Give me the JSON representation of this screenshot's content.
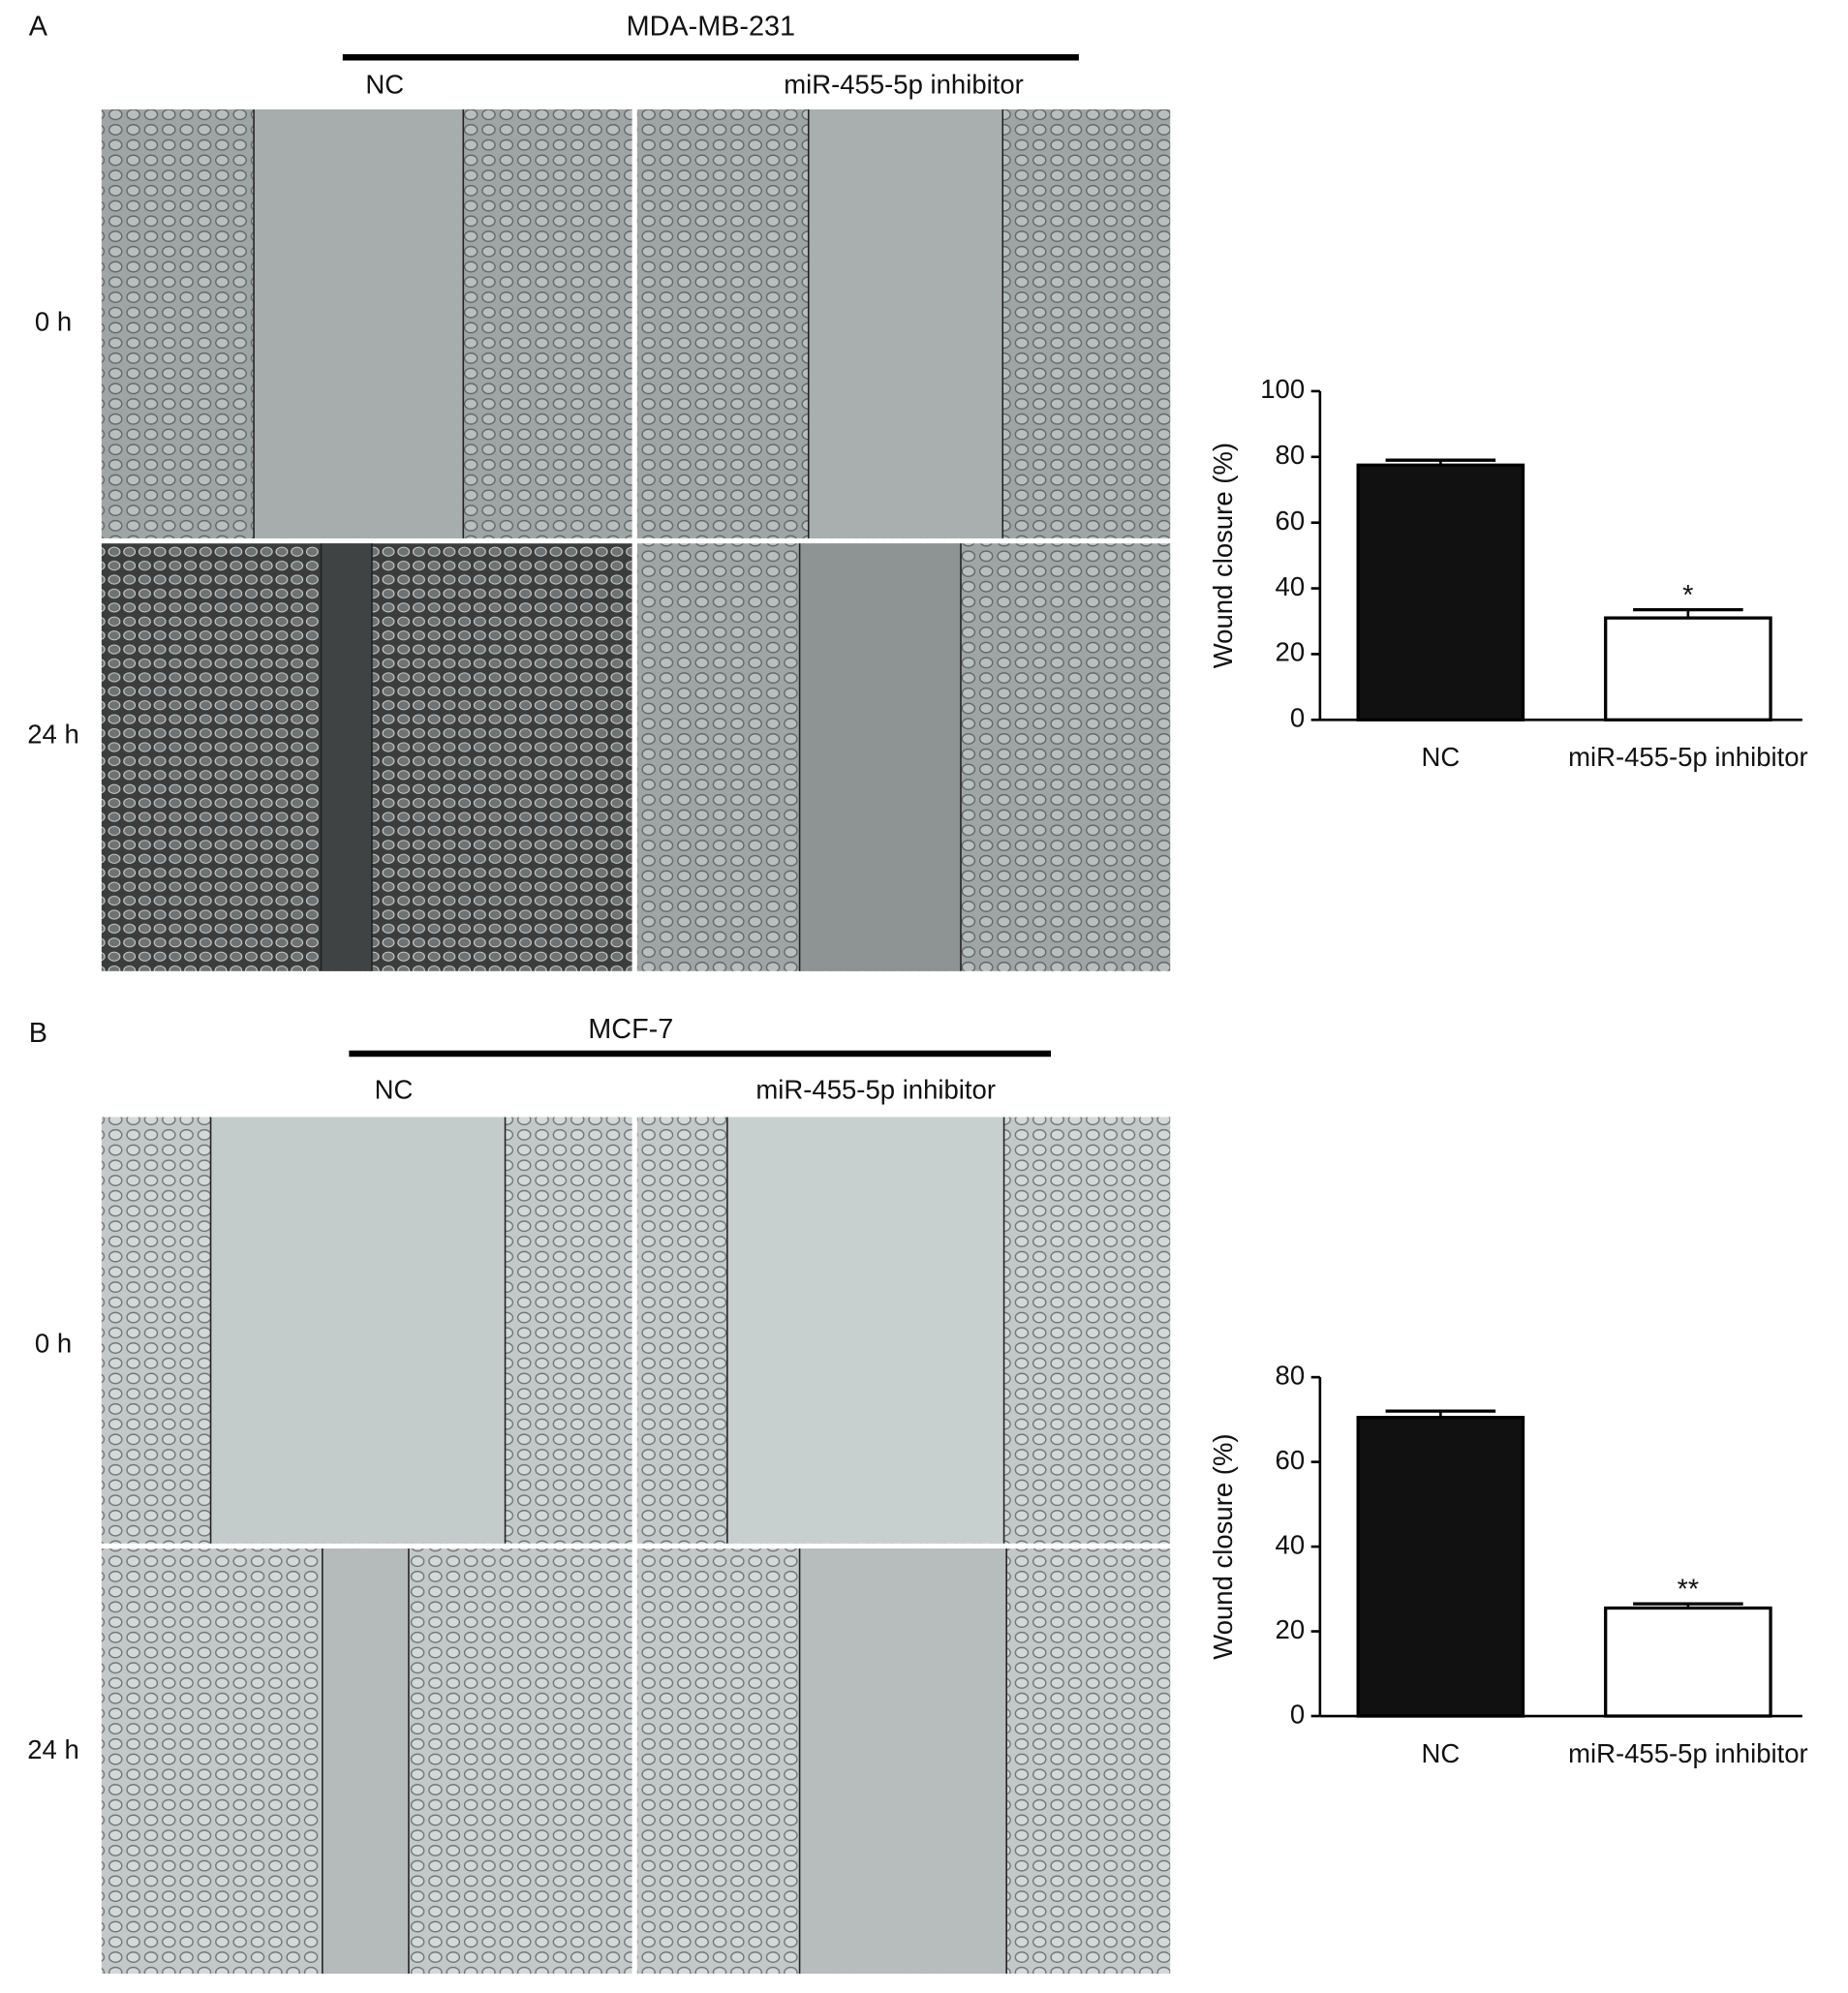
{
  "panels": [
    {
      "label": "A",
      "cell_line": "MDA-MB-231",
      "conditions": [
        "NC",
        "miR-455-5p inhibitor"
      ],
      "times": [
        "0 h",
        "24 h"
      ]
    },
    {
      "label": "B",
      "cell_line": "MCF-7",
      "conditions": [
        "NC",
        "miR-455-5p inhibitor"
      ],
      "times": [
        "0 h",
        "24 h"
      ]
    }
  ],
  "chart_data": [
    {
      "type": "bar",
      "ylabel": "Wound closure (%)",
      "categories": [
        "NC",
        "miR-455-5p inhibitor"
      ],
      "values": [
        77.5,
        31
      ],
      "errors": [
        1.5,
        2.5
      ],
      "annotations": [
        null,
        "*"
      ],
      "colors": [
        "#111111",
        "#ffffff"
      ],
      "edge_color": "#000000",
      "ylim": [
        0,
        100
      ],
      "yticks": [
        0,
        20,
        40,
        60,
        80,
        100
      ]
    },
    {
      "type": "bar",
      "ylabel": "Wound closure (%)",
      "categories": [
        "NC",
        "miR-455-5p inhibitor"
      ],
      "values": [
        70.5,
        25.5
      ],
      "errors": [
        1.5,
        1
      ],
      "annotations": [
        null,
        "**"
      ],
      "colors": [
        "#111111",
        "#ffffff"
      ],
      "edge_color": "#000000",
      "ylim": [
        0,
        80
      ],
      "yticks": [
        0,
        20,
        40,
        60,
        80
      ]
    }
  ]
}
